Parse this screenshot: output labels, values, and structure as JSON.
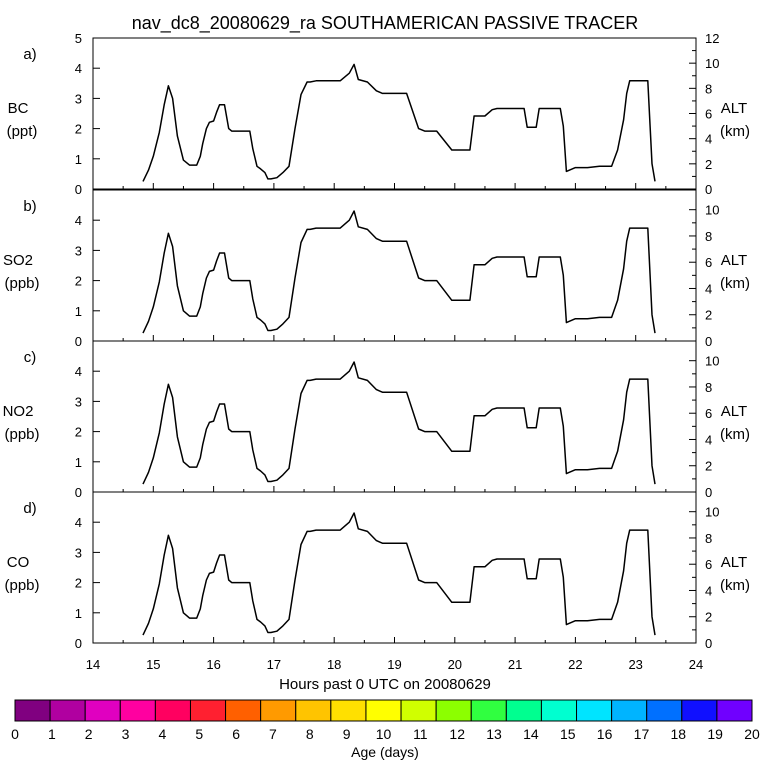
{
  "chart_data": {
    "type": "line",
    "title": "nav_dc8_20080629_ra SOUTHAMERICAN PASSIVE TRACER",
    "xlabel": "Hours past 0 UTC on 20080629",
    "xlim": [
      14,
      24
    ],
    "x_ticks": [
      "14",
      "15",
      "16",
      "17",
      "18",
      "19",
      "20",
      "21",
      "22",
      "23",
      "24"
    ],
    "grid": false,
    "right_axis": {
      "label": "ALT",
      "units": "(km)"
    },
    "panels": [
      {
        "letter": "a)",
        "species": "BC",
        "units": "(ppt)",
        "ylim": [
          0,
          5
        ],
        "y_ticks": [
          "0",
          "1",
          "2",
          "3",
          "4",
          "5"
        ],
        "alt_ylim": [
          0,
          12
        ],
        "alt_ticks": [
          "0",
          "2",
          "4",
          "6",
          "8",
          "10",
          "12"
        ],
        "alt_axis_max": 12
      },
      {
        "letter": "b)",
        "species": "SO2",
        "units": "(ppb)",
        "ylim": [
          0,
          5
        ],
        "y_ticks": [
          "0",
          "1",
          "2",
          "3",
          "4"
        ],
        "alt_ylim": [
          0,
          11.5
        ],
        "alt_ticks": [
          "0",
          "2",
          "4",
          "6",
          "8",
          "10"
        ],
        "alt_axis_max": 11.5
      },
      {
        "letter": "c)",
        "species": "NO2",
        "units": "(ppb)",
        "ylim": [
          0,
          5
        ],
        "y_ticks": [
          "0",
          "1",
          "2",
          "3",
          "4"
        ],
        "alt_ylim": [
          0,
          11.5
        ],
        "alt_ticks": [
          "0",
          "2",
          "4",
          "6",
          "8",
          "10"
        ],
        "alt_axis_max": 11.5
      },
      {
        "letter": "d)",
        "species": "CO",
        "units": "(ppb)",
        "ylim": [
          0,
          5
        ],
        "y_ticks": [
          "0",
          "1",
          "2",
          "3",
          "4"
        ],
        "alt_ylim": [
          0,
          11.5
        ],
        "alt_ticks": [
          "0",
          "2",
          "4",
          "6",
          "8",
          "10"
        ],
        "alt_axis_max": 11.5
      }
    ],
    "altitude_series": {
      "x": [
        14.83,
        14.92,
        15.0,
        15.1,
        15.18,
        15.25,
        15.32,
        15.4,
        15.5,
        15.6,
        15.72,
        15.78,
        15.82,
        15.88,
        15.93,
        16.0,
        16.05,
        16.1,
        16.18,
        16.25,
        16.3,
        16.4,
        16.6,
        16.65,
        16.72,
        16.78,
        16.85,
        16.9,
        16.95,
        17.05,
        17.15,
        17.25,
        17.35,
        17.45,
        17.55,
        17.6,
        17.7,
        17.9,
        18.1,
        18.25,
        18.33,
        18.4,
        18.55,
        18.7,
        18.8,
        19.0,
        19.2,
        19.4,
        19.5,
        19.7,
        19.95,
        20.0,
        20.25,
        20.32,
        20.5,
        20.62,
        20.7,
        21.0,
        21.15,
        21.2,
        21.35,
        21.4,
        21.75,
        21.8,
        21.85,
        22.0,
        22.2,
        22.4,
        22.6,
        22.7,
        22.8,
        22.85,
        22.9,
        23.0,
        23.1,
        23.2,
        23.27,
        23.32
      ],
      "y": [
        0.6,
        1.5,
        2.6,
        4.5,
        6.7,
        8.2,
        7.2,
        4.2,
        2.3,
        1.9,
        1.9,
        2.6,
        3.6,
        4.8,
        5.3,
        5.4,
        6.1,
        6.7,
        6.7,
        4.8,
        4.6,
        4.6,
        4.6,
        3.2,
        1.8,
        1.6,
        1.3,
        0.8,
        0.8,
        0.9,
        1.3,
        1.8,
        4.8,
        7.5,
        8.5,
        8.5,
        8.6,
        8.6,
        8.6,
        9.2,
        9.9,
        8.7,
        8.5,
        7.8,
        7.6,
        7.6,
        7.6,
        4.8,
        4.6,
        4.6,
        3.1,
        3.1,
        3.1,
        5.8,
        5.8,
        6.3,
        6.4,
        6.4,
        6.4,
        4.9,
        4.9,
        6.4,
        6.4,
        5.0,
        1.4,
        1.7,
        1.7,
        1.8,
        1.8,
        3.1,
        5.5,
        7.6,
        8.6,
        8.6,
        8.6,
        8.6,
        2.0,
        0.6
      ]
    }
  },
  "colorbar": {
    "label": "Age (days)",
    "tick_labels": [
      "0",
      "1",
      "2",
      "3",
      "4",
      "5",
      "6",
      "7",
      "8",
      "9",
      "10",
      "11",
      "12",
      "13",
      "14",
      "15",
      "16",
      "17",
      "18",
      "19",
      "20"
    ],
    "colors": [
      "#800080",
      "#b000a0",
      "#e000c0",
      "#ff00a0",
      "#ff0060",
      "#ff2030",
      "#ff6000",
      "#ff9a00",
      "#ffc400",
      "#ffe000",
      "#ffff00",
      "#d0ff00",
      "#8cff00",
      "#30ff40",
      "#00ff90",
      "#00ffd0",
      "#00e4ff",
      "#00b4ff",
      "#0070ff",
      "#1010ff",
      "#7000ff"
    ]
  }
}
